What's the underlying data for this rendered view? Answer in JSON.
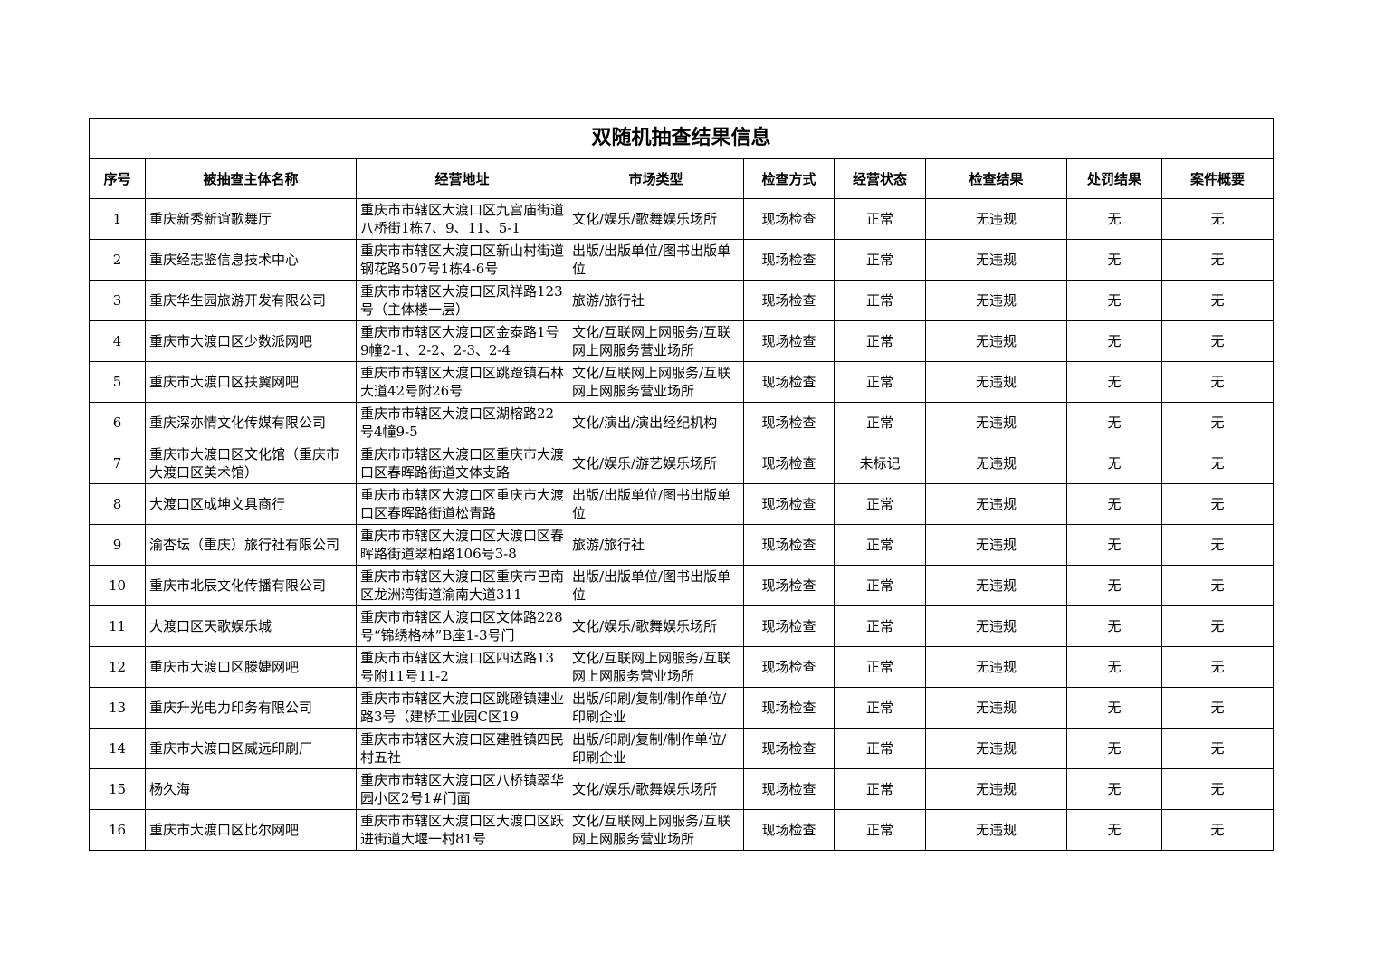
{
  "title": "双随机抽查结果信息",
  "headers": [
    "序号",
    "被抽查主体名称",
    "经营地址",
    "市场类型",
    "检查方式",
    "经营状态",
    "检查结果",
    "处罚结果",
    "案件概要"
  ],
  "rows": [
    [
      "1",
      "重庆新秀新谊歌舞厅",
      "重庆市市辖区大渡口区九宫庙街道八桥街1栋7、9、11、5-1",
      "文化/娱乐/歌舞娱乐场所",
      "现场检查",
      "正常",
      "无违规",
      "无",
      "无"
    ],
    [
      "2",
      "重庆经志鉴信息技术中心",
      "重庆市市辖区大渡口区新山村街道钢花路507号1栋4-6号",
      "出版/出版单位/图书出版单位",
      "现场检查",
      "正常",
      "无违规",
      "无",
      "无"
    ],
    [
      "3",
      "重庆华生园旅游开发有限公司",
      "重庆市市辖区大渡口区凤祥路123号（主体楼一层）",
      "旅游/旅行社",
      "现场检查",
      "正常",
      "无违规",
      "无",
      "无"
    ],
    [
      "4",
      "重庆市大渡口区少数派网吧",
      "重庆市市辖区大渡口区金泰路1号9幢2-1、2-2、2-3、2-4",
      "文化/互联网上网服务/互联网上网服务营业场所",
      "现场检查",
      "正常",
      "无违规",
      "无",
      "无"
    ],
    [
      "5",
      "重庆市大渡口区扶翼网吧",
      "重庆市市辖区大渡口区跳蹬镇石林大道42号附26号",
      "文化/互联网上网服务/互联网上网服务营业场所",
      "现场检查",
      "正常",
      "无违规",
      "无",
      "无"
    ],
    [
      "6",
      "重庆深亦情文化传媒有限公司",
      "重庆市市辖区大渡口区湖榕路22号4幢9-5",
      "文化/演出/演出经纪机构",
      "现场检查",
      "正常",
      "无违规",
      "无",
      "无"
    ],
    [
      "7",
      "重庆市大渡口区文化馆（重庆市大渡口区美术馆）",
      "重庆市市辖区大渡口区重庆市大渡口区春晖路街道文体支路",
      "文化/娱乐/游艺娱乐场所",
      "现场检查",
      "未标记",
      "无违规",
      "无",
      "无"
    ],
    [
      "8",
      "大渡口区成坤文具商行",
      "重庆市市辖区大渡口区重庆市大渡口区春晖路街道松青路",
      "出版/出版单位/图书出版单位",
      "现场检查",
      "正常",
      "无违规",
      "无",
      "无"
    ],
    [
      "9",
      "渝杏坛（重庆）旅行社有限公司",
      "重庆市市辖区大渡口区大渡口区春晖路街道翠柏路106号3-8",
      "旅游/旅行社",
      "现场检查",
      "正常",
      "无违规",
      "无",
      "无"
    ],
    [
      "10",
      "重庆市北辰文化传播有限公司",
      "重庆市市辖区大渡口区重庆市巴南区龙洲湾街道渝南大道311",
      "出版/出版单位/图书出版单位",
      "现场检查",
      "正常",
      "无违规",
      "无",
      "无"
    ],
    [
      "11",
      "大渡口区天歌娱乐城",
      "重庆市市辖区大渡口区文体路228号“锦绣格林”B座1-3号门",
      "文化/娱乐/歌舞娱乐场所",
      "现场检查",
      "正常",
      "无违规",
      "无",
      "无"
    ],
    [
      "12",
      "重庆市大渡口区滕婕网吧",
      "重庆市市辖区大渡口区四达路13号附11号11-2",
      "文化/互联网上网服务/互联网上网服务营业场所",
      "现场检查",
      "正常",
      "无违规",
      "无",
      "无"
    ],
    [
      "13",
      "重庆升光电力印务有限公司",
      "重庆市市辖区大渡口区跳磴镇建业路3号（建桥工业园C区19",
      "出版/印刷/复制/制作单位/印刷企业",
      "现场检查",
      "正常",
      "无违规",
      "无",
      "无"
    ],
    [
      "14",
      "重庆市大渡口区威远印刷厂",
      "重庆市市辖区大渡口区建胜镇四民村五社",
      "出版/印刷/复制/制作单位/印刷企业",
      "现场检查",
      "正常",
      "无违规",
      "无",
      "无"
    ],
    [
      "15",
      "杨久海",
      "重庆市市辖区大渡口区八桥镇翠华园小区2号1#门面",
      "文化/娱乐/歌舞娱乐场所",
      "现场检查",
      "正常",
      "无违规",
      "无",
      "无"
    ],
    [
      "16",
      "重庆市大渡口区比尔网吧",
      "重庆市市辖区大渡口区大渡口区跃进街道大堰一村81号",
      "文化/互联网上网服务/互联网上网服务营业场所",
      "现场检查",
      "正常",
      "无违规",
      "无",
      "无"
    ]
  ]
}
